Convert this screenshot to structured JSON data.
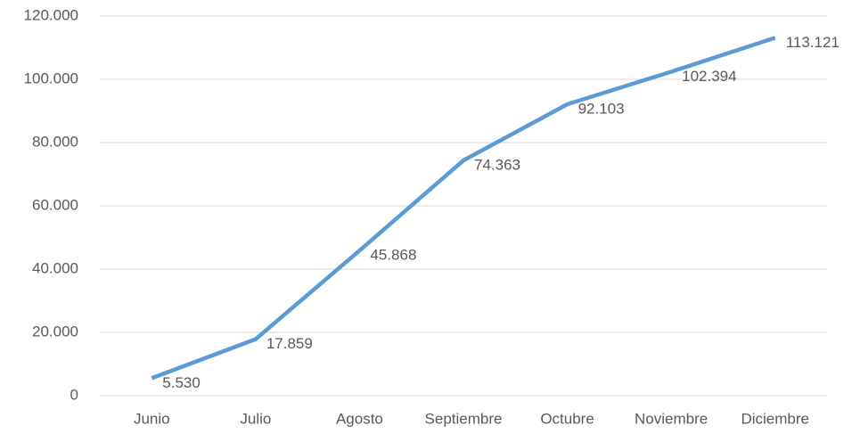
{
  "chart_data": {
    "type": "line",
    "categories": [
      "Junio",
      "Julio",
      "Agosto",
      "Septiembre",
      "Octubre",
      "Noviembre",
      "Diciembre"
    ],
    "values": [
      5530,
      17859,
      45868,
      74363,
      92103,
      102394,
      113121
    ],
    "value_labels": [
      "5.530",
      "17.859",
      "45.868",
      "74.363",
      "92.103",
      "102.394",
      "113.121"
    ],
    "color": "#5b9bd5",
    "ylim": [
      0,
      120000
    ],
    "yticks": [
      0,
      {
        "value": 20000,
        "label": "20.000"
      },
      {
        "value": 40000,
        "label": "40.000"
      },
      {
        "value": 60000,
        "label": "60.000"
      },
      {
        "value": 80000,
        "label": "80.000"
      },
      {
        "value": 100000,
        "label": "100.000"
      },
      {
        "value": 120000,
        "label": "120.000"
      }
    ],
    "grid": true
  }
}
